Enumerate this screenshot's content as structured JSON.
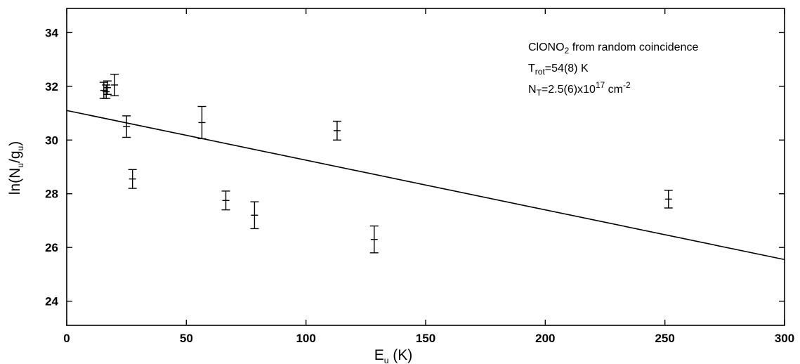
{
  "chart_data": {
    "type": "scatter",
    "xlabel": {
      "main": "E",
      "sub": "u",
      "tail": " (K)"
    },
    "ylabel": {
      "pre": "ln(N",
      "sub1": "u",
      "mid": "/g",
      "sub2": "u",
      "tail": ")"
    },
    "xlim": [
      0,
      300
    ],
    "ylim": [
      23.1,
      34.9
    ],
    "xticks": [
      "0",
      "50",
      "100",
      "150",
      "200",
      "250",
      "300"
    ],
    "yticks": [
      "24",
      "26",
      "28",
      "30",
      "32",
      "34"
    ],
    "grid": false,
    "points": [
      {
        "x": 15.5,
        "y": 31.85,
        "err": 0.3
      },
      {
        "x": 16.5,
        "y": 31.8,
        "err": 0.25
      },
      {
        "x": 17.0,
        "y": 31.95,
        "err": 0.25
      },
      {
        "x": 20.0,
        "y": 32.05,
        "err": 0.4
      },
      {
        "x": 25.0,
        "y": 30.5,
        "err": 0.4
      },
      {
        "x": 27.5,
        "y": 28.55,
        "err": 0.35
      },
      {
        "x": 56.5,
        "y": 30.65,
        "err": 0.6
      },
      {
        "x": 66.5,
        "y": 27.75,
        "err": 0.35
      },
      {
        "x": 78.5,
        "y": 27.2,
        "err": 0.5
      },
      {
        "x": 113.0,
        "y": 30.35,
        "err": 0.35
      },
      {
        "x": 128.5,
        "y": 26.3,
        "err": 0.5
      },
      {
        "x": 251.5,
        "y": 27.8,
        "err": 0.33
      }
    ],
    "fit_line": {
      "x": [
        0,
        300
      ],
      "y": [
        31.1,
        25.55
      ]
    },
    "annotation": {
      "line1": {
        "pre": "ClONO",
        "sub": "2",
        "tail": " from random coincidence"
      },
      "line2": {
        "pre": "T",
        "sub": "rot",
        "tail": "=54(8) K"
      },
      "line3": {
        "pre": "N",
        "sub": "T",
        "mid": "=2.5(6)x10",
        "sup1": "17",
        "mid2": " cm",
        "sup2": "-2"
      }
    }
  }
}
